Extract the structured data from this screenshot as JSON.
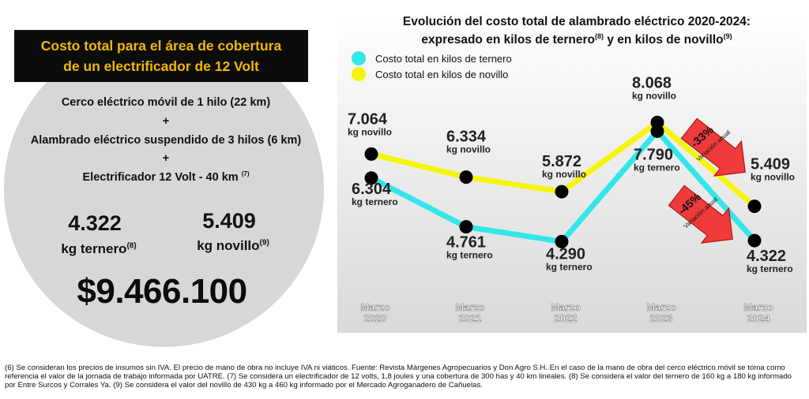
{
  "left_panel": {
    "title_line1": "Costo total para el área de cobertura",
    "title_line2": "de un electrificador de 12 Volt",
    "item1": "Cerco eléctrico móvil de 1 hilo (22 km)",
    "plus1": "+",
    "item2": "Alambrado eléctrico suspendido de 3 hilos (6 km)",
    "plus2": "+",
    "item3": "Electrificador  12 Volt - 40 km",
    "item3_note": "(7)",
    "ternero_value": "4.322",
    "ternero_unit": "kg ternero",
    "ternero_note": "(8)",
    "novillo_value": "5.409",
    "novillo_unit": "kg novillo",
    "novillo_note": "(9)",
    "total_cost": "$9.466.100"
  },
  "chart_data": {
    "type": "line",
    "title_line1": "Evolución del costo total de alambrado eléctrico 2020-2024:",
    "title_line2_a": "expresado en kilos de ternero",
    "title_note_a": "(8)",
    "title_line2_b": " y en kilos de novillo",
    "title_note_b": "(9)",
    "categories": [
      {
        "month": "Marzo",
        "year": "2020"
      },
      {
        "month": "Marzo",
        "year": "2021"
      },
      {
        "month": "Marzo",
        "year": "2022"
      },
      {
        "month": "Marzo",
        "year": "2023"
      },
      {
        "month": "Marzo",
        "year": "2024"
      }
    ],
    "series": [
      {
        "name": "Costo total en kilos de ternero",
        "color": "#33e6ea",
        "values": [
          6304,
          4761,
          4290,
          7790,
          4322
        ],
        "labels": [
          "6.304",
          "4.761",
          "4.290",
          "7.790",
          "4.322"
        ],
        "unit": "kg ternero"
      },
      {
        "name": "Costo total en kilos de novillo",
        "color": "#f5f50a",
        "values": [
          7064,
          6334,
          5872,
          8068,
          5409
        ],
        "labels": [
          "7.064",
          "6.334",
          "5.872",
          "8.068",
          "5.409"
        ],
        "unit": "kg novillo"
      }
    ],
    "annotations": [
      {
        "percent": "-33%",
        "text": "Variación anual",
        "series": "novillo"
      },
      {
        "percent": "-45%",
        "text": "Variación anual",
        "series": "ternero"
      }
    ],
    "highlight_color": "#ef3b3b"
  },
  "footnote": "(6) Se consideran los precios de insumos sin IVA. El precio de mano de obra no incluye IVA ni viáticos. Fuente: Revista Márgenes Agropecuarios y Don Agro S.H. En el caso de la mano de obra del cerco eléctrico móvil se toma como referencia el valor de la jornada de trabajo informada por UATRE. (7) Se considera un electrificador de 12 volts, 1,8 joules y una cobertura de 300 has y 40 km lineales. (8) Se considera el valor del ternero de 160 kg a 180 kg informado por Entre Surcos y Corrales Ya. (9) Se considera el valor del novillo de 430 kg a 460 kg informado por el Mercado Agroganadero de Cañuelas."
}
